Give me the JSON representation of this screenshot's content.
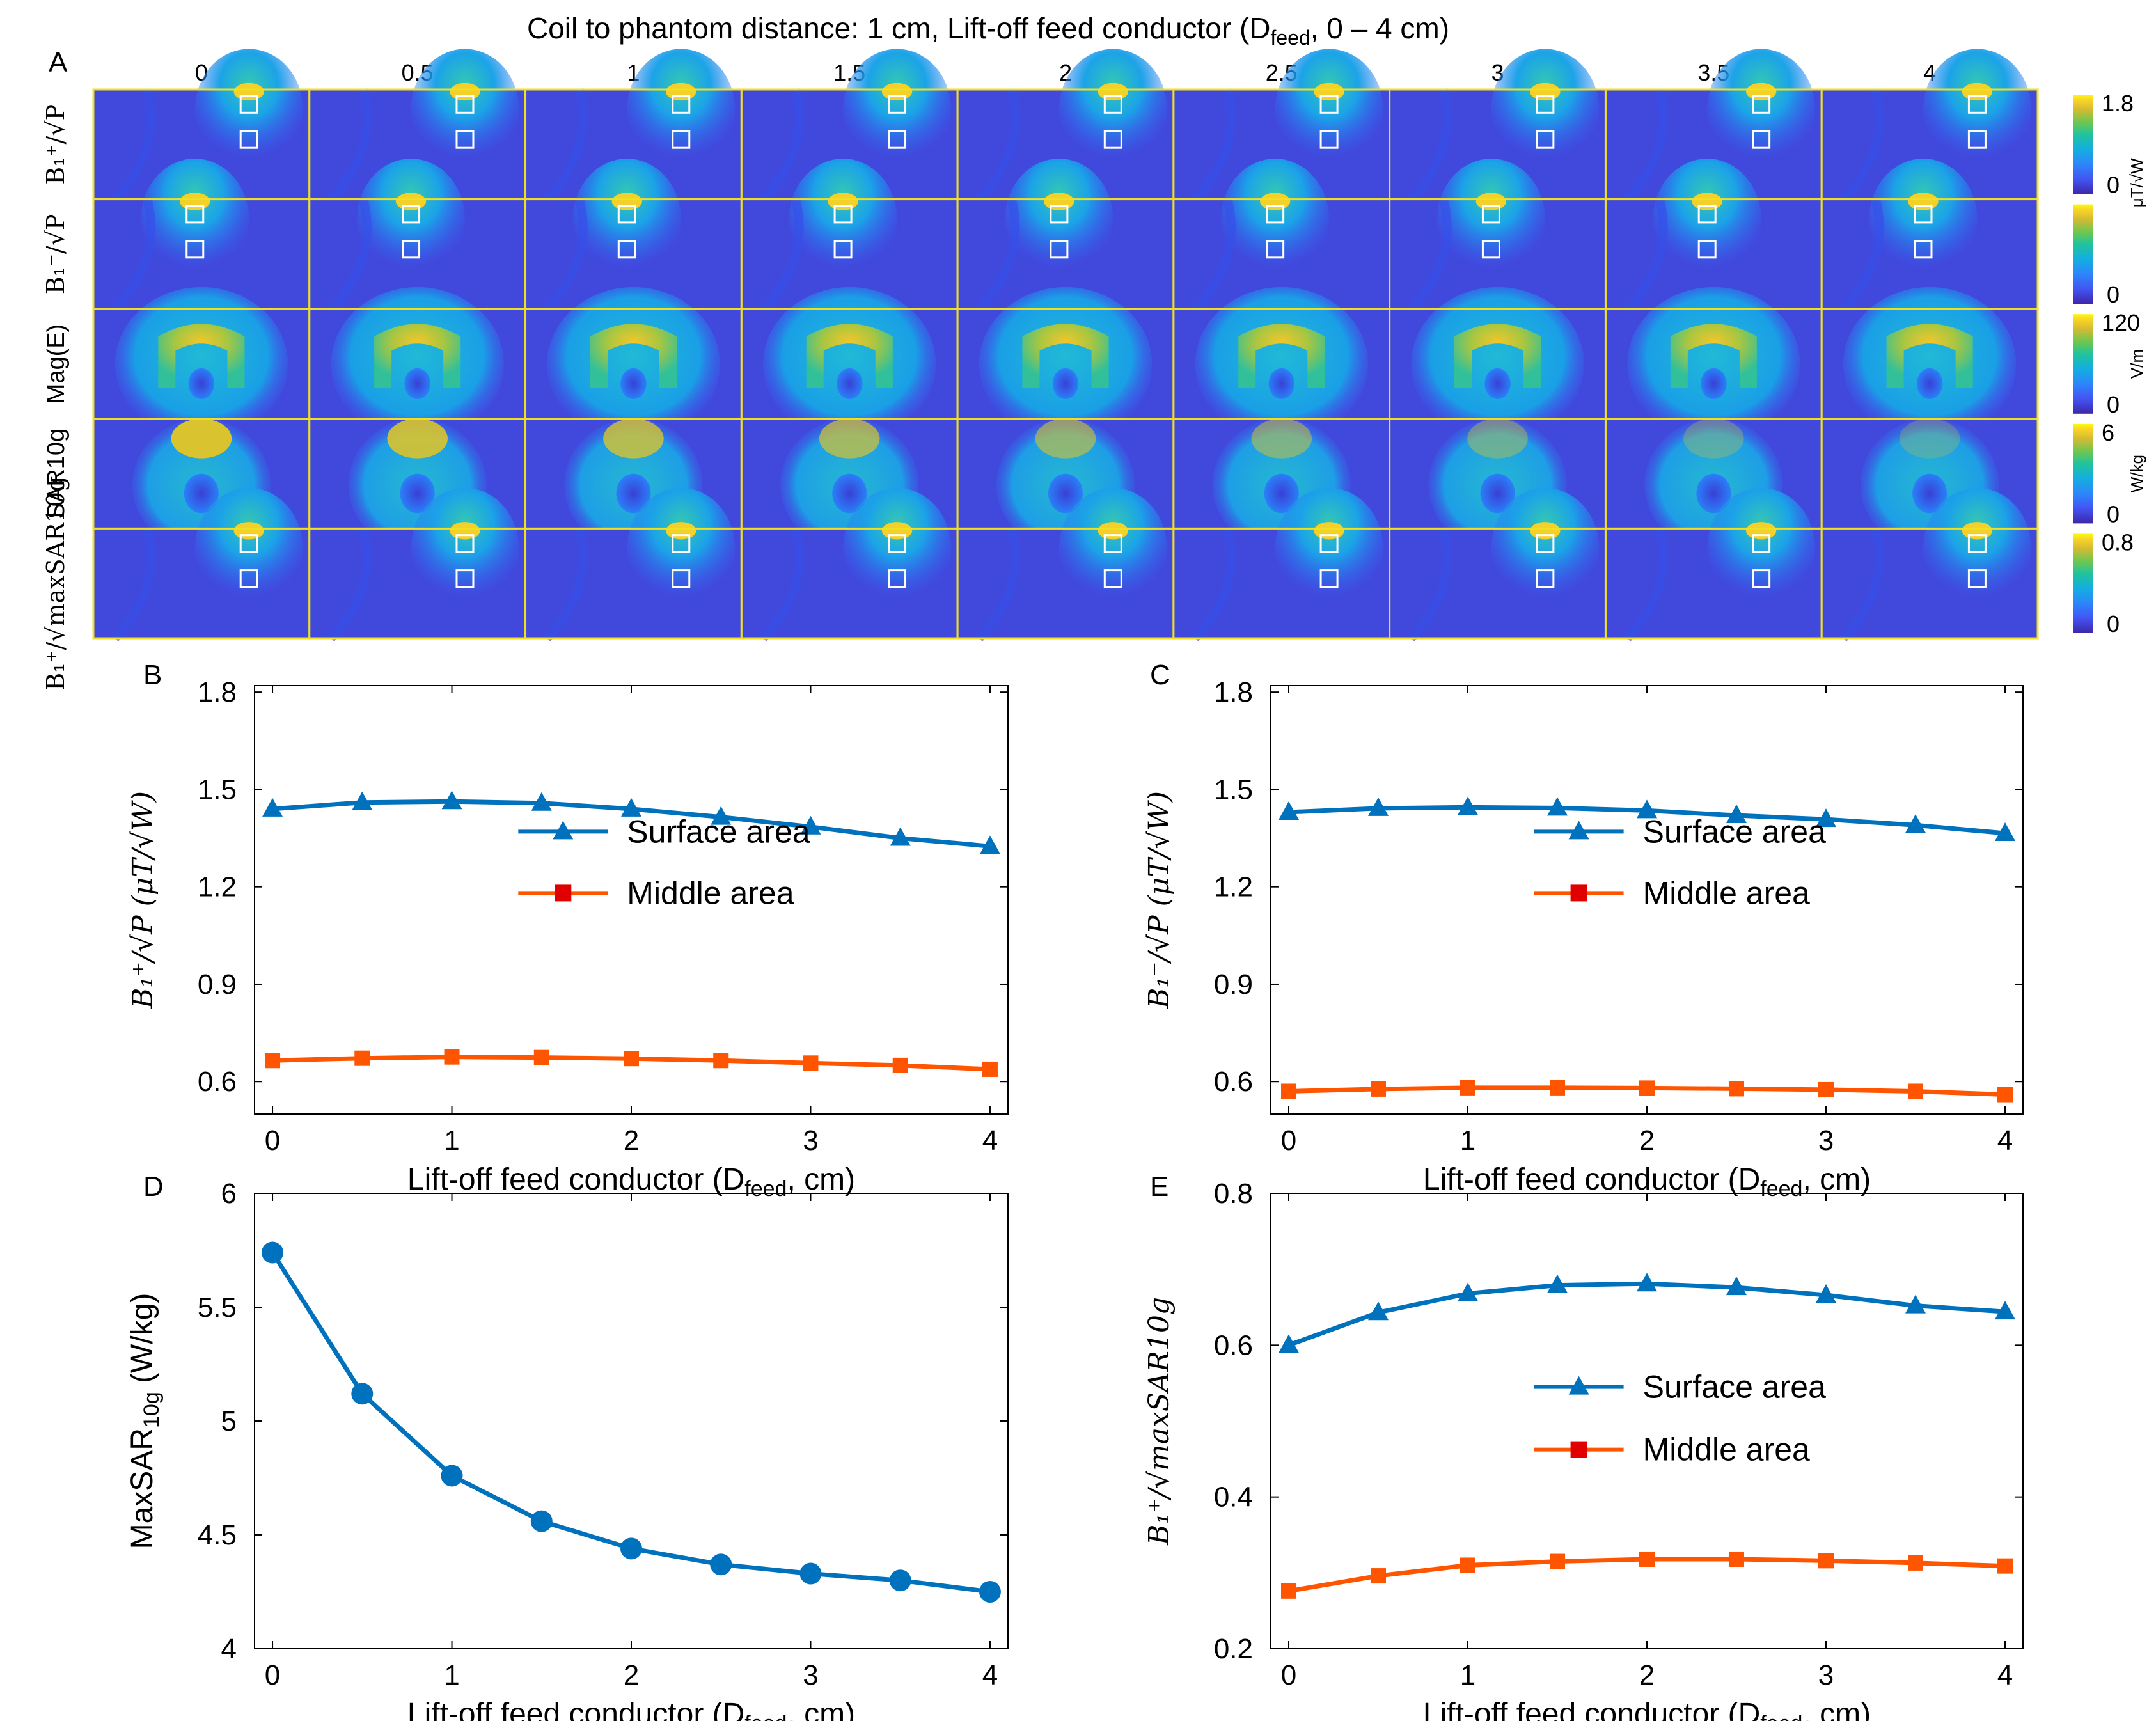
{
  "figure": {
    "title_main": "Coil to phantom distance: 1 cm, Lift-off feed conductor (D",
    "title_sub": "feed",
    "title_tail": ", 0 – 4 cm)",
    "panel_letters": {
      "A": "A",
      "B": "B",
      "C": "C",
      "D": "D",
      "E": "E"
    },
    "columns": [
      "0",
      "0.5",
      "1",
      "1.5",
      "2",
      "2.5",
      "3",
      "3.5",
      "4"
    ],
    "rows": [
      {
        "label": "B₁⁺/√P",
        "colorbar_max": "1.8",
        "colorbar_min": "0",
        "unit": "μT/√W",
        "kind": "b1plus"
      },
      {
        "label": "B₁⁻/√P",
        "colorbar_max": "",
        "colorbar_min": "0",
        "unit": "",
        "kind": "b1minus"
      },
      {
        "label": "Mag(E)",
        "colorbar_max": "120",
        "colorbar_min": "0",
        "unit": "V/m",
        "kind": "efield"
      },
      {
        "label": "SAR10g",
        "colorbar_max": "6",
        "colorbar_min": "0",
        "unit": "W/kg",
        "kind": "sar"
      },
      {
        "label": "B₁⁺/√maxSAR10g",
        "colorbar_max": "0.8",
        "colorbar_min": "0",
        "unit": "",
        "kind": "b1plus"
      }
    ],
    "colors": {
      "surface": "#0072bd",
      "middle": "#ff5500",
      "middle_marker": "#e00000",
      "grid_line": "#f0e020"
    }
  },
  "chart_data": [
    {
      "panel": "B",
      "type": "line",
      "xlabel_main": "Lift-off feed conductor (D",
      "xlabel_sub": "feed",
      "xlabel_tail": ", cm)",
      "ylabel": "B₁⁺/√P (μT/√W)",
      "xlim": [
        -0.1,
        4.1
      ],
      "ylim": [
        0.5,
        1.82
      ],
      "xticks": [
        0,
        1,
        2,
        3,
        4
      ],
      "yticks": [
        0.6,
        0.9,
        1.2,
        1.5,
        1.8
      ],
      "ytick_labels": [
        "0.6",
        "0.9",
        "1.2",
        "1.5",
        "1.8"
      ],
      "x": [
        0,
        0.5,
        1,
        1.5,
        2,
        2.5,
        3,
        3.5,
        4
      ],
      "legend_position": "center-right",
      "series": [
        {
          "name": "Surface area",
          "marker": "triangle",
          "values": [
            1.44,
            1.46,
            1.463,
            1.458,
            1.44,
            1.415,
            1.385,
            1.35,
            1.325
          ]
        },
        {
          "name": "Middle area",
          "marker": "square",
          "values": [
            0.665,
            0.672,
            0.676,
            0.674,
            0.671,
            0.665,
            0.657,
            0.65,
            0.638
          ]
        }
      ]
    },
    {
      "panel": "C",
      "type": "line",
      "xlabel_main": "Lift-off feed conductor (D",
      "xlabel_sub": "feed",
      "xlabel_tail": ", cm)",
      "ylabel": "B₁⁻/√P (μT/√W)",
      "xlim": [
        -0.1,
        4.1
      ],
      "ylim": [
        0.5,
        1.82
      ],
      "xticks": [
        0,
        1,
        2,
        3,
        4
      ],
      "yticks": [
        0.6,
        0.9,
        1.2,
        1.5,
        1.8
      ],
      "ytick_labels": [
        "0.6",
        "0.9",
        "1.2",
        "1.5",
        "1.8"
      ],
      "x": [
        0,
        0.5,
        1,
        1.5,
        2,
        2.5,
        3,
        3.5,
        4
      ],
      "legend_position": "center-right",
      "series": [
        {
          "name": "Surface area",
          "marker": "triangle",
          "values": [
            1.43,
            1.442,
            1.445,
            1.443,
            1.435,
            1.42,
            1.408,
            1.39,
            1.365
          ]
        },
        {
          "name": "Middle area",
          "marker": "square",
          "values": [
            0.57,
            0.577,
            0.581,
            0.581,
            0.58,
            0.578,
            0.575,
            0.57,
            0.56
          ]
        }
      ]
    },
    {
      "panel": "D",
      "type": "line",
      "xlabel_main": "Lift-off feed conductor (D",
      "xlabel_sub": "feed",
      "xlabel_tail": ", cm)",
      "ylabel_main": "MaxSAR",
      "ylabel_sub": "10g",
      "ylabel_tail": " (W/kg)",
      "xlim": [
        -0.1,
        4.1
      ],
      "ylim": [
        4,
        6
      ],
      "xticks": [
        0,
        1,
        2,
        3,
        4
      ],
      "yticks": [
        4,
        4.5,
        5,
        5.5,
        6
      ],
      "ytick_labels": [
        "4",
        "4.5",
        "5",
        "5.5",
        "6"
      ],
      "x": [
        0,
        0.5,
        1,
        1.5,
        2,
        2.5,
        3,
        3.5,
        4
      ],
      "series": [
        {
          "name": "",
          "marker": "circle",
          "values": [
            5.74,
            5.12,
            4.76,
            4.56,
            4.44,
            4.37,
            4.33,
            4.3,
            4.25
          ]
        }
      ]
    },
    {
      "panel": "E",
      "type": "line",
      "xlabel_main": "Lift-off feed conductor (D",
      "xlabel_sub": "feed",
      "xlabel_tail": ", cm)",
      "ylabel": "B₁⁺/√maxSAR10g",
      "xlim": [
        -0.1,
        4.1
      ],
      "ylim": [
        0.2,
        0.8
      ],
      "xticks": [
        0,
        1,
        2,
        3,
        4
      ],
      "yticks": [
        0.2,
        0.4,
        0.6,
        0.8
      ],
      "ytick_labels": [
        "0.2",
        "0.4",
        "0.6",
        "0.8"
      ],
      "x": [
        0,
        0.5,
        1,
        1.5,
        2,
        2.5,
        3,
        3.5,
        4
      ],
      "legend_position": "center-right",
      "series": [
        {
          "name": "Surface area",
          "marker": "triangle",
          "values": [
            0.6,
            0.643,
            0.668,
            0.679,
            0.681,
            0.676,
            0.666,
            0.652,
            0.644
          ]
        },
        {
          "name": "Middle area",
          "marker": "square",
          "values": [
            0.276,
            0.296,
            0.31,
            0.315,
            0.318,
            0.318,
            0.316,
            0.313,
            0.309
          ]
        }
      ]
    }
  ]
}
